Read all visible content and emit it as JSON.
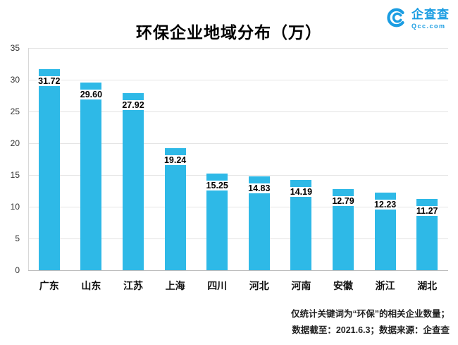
{
  "title": "环保企业地域分布（万）",
  "logo": {
    "name": "企查查",
    "domain": "Qcc.com"
  },
  "footnotes": [
    "仅统计关键词为“环保”的相关企业数量；",
    "数据截至：2021.6.3；数据来源：企查查"
  ],
  "chart_data": {
    "type": "bar",
    "title": "环保企业地域分布（万）",
    "categories": [
      "广东",
      "山东",
      "江苏",
      "上海",
      "四川",
      "河北",
      "河南",
      "安徽",
      "浙江",
      "湖北"
    ],
    "values": [
      31.72,
      29.6,
      27.92,
      19.24,
      15.25,
      14.83,
      14.19,
      12.79,
      12.23,
      11.27
    ],
    "value_labels": [
      "31.72",
      "29.60",
      "27.92",
      "19.24",
      "15.25",
      "14.83",
      "14.19",
      "12.79",
      "12.23",
      "11.27"
    ],
    "xlabel": "",
    "ylabel": "",
    "ylim": [
      0,
      35
    ],
    "ytick_step": 5,
    "grid": true,
    "legend": "none",
    "bar_color": "#2EB9E7",
    "label_color": "#000000",
    "grid_color": "#e4e4e4"
  },
  "colors": {
    "accent_blue": "#1B9DE2",
    "bar": "#2EB9E7",
    "grid": "#e4e4e4",
    "axis": "#bdbdbd"
  }
}
